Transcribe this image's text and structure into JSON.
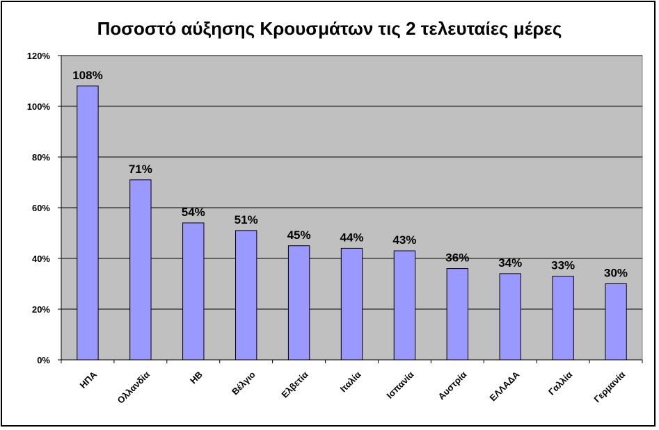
{
  "chart_data": {
    "type": "bar",
    "title": "Ποσοστό αύξησης Κρουσμάτων τις 2 τελευταίες μέρες",
    "categories": [
      "ΗΠΑ",
      "Ολλανδία",
      "ΗΒ",
      "Βέλγιο",
      "Ελβετία",
      "Ιταλία",
      "Ισπανία",
      "Αυστρία",
      "ΕΛΛΑΔΑ",
      "Γαλλία",
      "Γερμανία"
    ],
    "values": [
      108,
      71,
      54,
      51,
      45,
      44,
      43,
      36,
      34,
      33,
      30
    ],
    "data_labels": [
      "108%",
      "71%",
      "54%",
      "51%",
      "45%",
      "44%",
      "43%",
      "36%",
      "34%",
      "33%",
      "30%"
    ],
    "ylim": [
      0,
      120
    ],
    "yticks": [
      0,
      20,
      40,
      60,
      80,
      100,
      120
    ],
    "ytick_labels": [
      "0%",
      "20%",
      "40%",
      "60%",
      "80%",
      "100%",
      "120%"
    ],
    "grid": true,
    "colors": {
      "bar_fill": "#9999ff",
      "plot_bg": "#c0c0c0",
      "grid": "#000000"
    }
  }
}
